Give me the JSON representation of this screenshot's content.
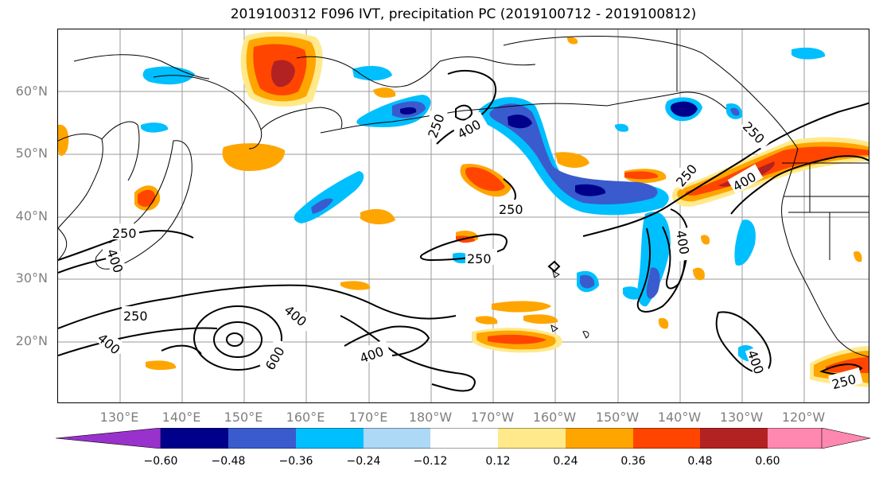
{
  "title": "2019100312 F096 IVT, precipitation PC (2019100712 - 2019100812)",
  "lat_labels": [
    "60°N",
    "50°N",
    "40°N",
    "30°N",
    "20°N"
  ],
  "lon_labels": [
    "130°E",
    "140°E",
    "150°E",
    "160°E",
    "170°E",
    "180°W",
    "170°W",
    "160°W",
    "150°W",
    "140°W",
    "130°W",
    "120°W"
  ],
  "contour_labels": [
    "250",
    "400",
    "250",
    "250",
    "250",
    "400",
    "400",
    "250",
    "400",
    "400",
    "250",
    "400",
    "600",
    "400",
    "250",
    "250",
    "400",
    "400",
    "250"
  ],
  "colorbar": {
    "tick_labels": [
      "−0.60",
      "−0.48",
      "−0.36",
      "−0.24",
      "−0.12",
      "0.12",
      "0.24",
      "0.36",
      "0.48",
      "0.60"
    ],
    "colors": [
      "#9932cc",
      "#00008b",
      "#3a5bcd",
      "#00bfff",
      "#add8f6",
      "#ffffff",
      "#ffe98a",
      "#ffa500",
      "#ff4500",
      "#b22222",
      "#ff88b0"
    ]
  }
}
